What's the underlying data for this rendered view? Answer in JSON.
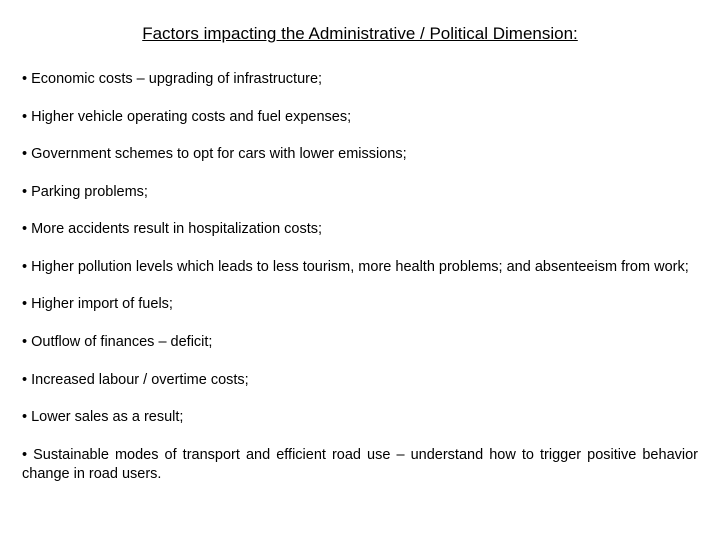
{
  "title": "Factors impacting the Administrative / Political Dimension:",
  "items": [
    "• Economic costs – upgrading of infrastructure;",
    "• Higher vehicle operating costs and fuel expenses;",
    "• Government schemes to opt for cars with lower emissions;",
    "• Parking problems;",
    "• More accidents result in hospitalization costs;",
    "• Higher pollution levels which leads to less tourism, more health problems; and absenteeism from work;",
    "• Higher import of fuels;",
    "• Outflow of finances – deficit;",
    "• Increased labour / overtime costs;",
    "• Lower sales as a result;",
    "• Sustainable modes of transport and efficient road use – understand how to trigger positive behavior change in road users."
  ],
  "styling": {
    "background_color": "#ffffff",
    "text_color": "#000000",
    "title_fontsize": 17,
    "body_fontsize": 14.5,
    "font_family": "Arial",
    "title_underline": true,
    "title_align": "center",
    "item_spacing": 18
  }
}
